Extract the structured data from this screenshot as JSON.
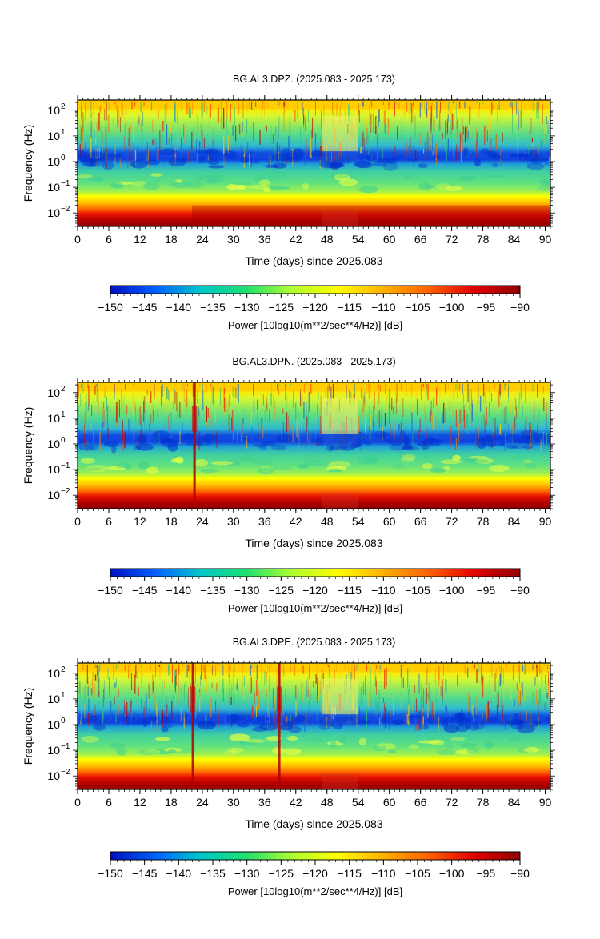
{
  "chart_data": [
    {
      "type": "heatmap",
      "title": "BG.AL3.DPZ. (2025.083 - 2025.173)",
      "xlabel": "Time (days) since 2025.083",
      "ylabel": "Frequency (Hz)",
      "xlim": [
        0,
        91
      ],
      "x_ticks": [
        0,
        6,
        12,
        18,
        24,
        30,
        36,
        42,
        48,
        54,
        60,
        66,
        72,
        78,
        84,
        90
      ],
      "y_scale": "log",
      "ylim": [
        0.003,
        250
      ],
      "y_ticks": [
        {
          "value": 0.01,
          "base": "10",
          "exp": "−2"
        },
        {
          "value": 0.1,
          "base": "10",
          "exp": "−1"
        },
        {
          "value": 1,
          "base": "10",
          "exp": "0"
        },
        {
          "value": 10,
          "base": "10",
          "exp": "1"
        },
        {
          "value": 100,
          "base": "10",
          "exp": "2"
        }
      ],
      "features": [
        {
          "kind": "broadband_high",
          "day": 22
        },
        {
          "kind": "quiet_gap",
          "start_day": 47,
          "end_day": 54
        }
      ],
      "colorbar": {
        "label": "Power [10log10(m**2/sec**4/Hz)] [dB]",
        "range": [
          -150,
          -90
        ],
        "ticks": [
          "−150",
          "−145",
          "−140",
          "−135",
          "−130",
          "−125",
          "−120",
          "−115",
          "−110",
          "−105",
          "−100",
          "−95",
          "−90"
        ]
      }
    },
    {
      "type": "heatmap",
      "title": "BG.AL3.DPN. (2025.083 - 2025.173)",
      "xlabel": "Time (days) since 2025.083",
      "ylabel": "Frequency (Hz)",
      "xlim": [
        0,
        91
      ],
      "x_ticks": [
        0,
        6,
        12,
        18,
        24,
        30,
        36,
        42,
        48,
        54,
        60,
        66,
        72,
        78,
        84,
        90
      ],
      "y_scale": "log",
      "ylim": [
        0.003,
        250
      ],
      "y_ticks": [
        {
          "value": 0.01,
          "base": "10",
          "exp": "−2"
        },
        {
          "value": 0.1,
          "base": "10",
          "exp": "−1"
        },
        {
          "value": 1,
          "base": "10",
          "exp": "0"
        },
        {
          "value": 10,
          "base": "10",
          "exp": "1"
        },
        {
          "value": 100,
          "base": "10",
          "exp": "2"
        }
      ],
      "features": [
        {
          "kind": "spike",
          "day": 22.5
        },
        {
          "kind": "quiet_gap",
          "start_day": 47,
          "end_day": 54
        }
      ],
      "colorbar": {
        "label": "Power [10log10(m**2/sec**4/Hz)] [dB]",
        "range": [
          -150,
          -90
        ],
        "ticks": [
          "−150",
          "−145",
          "−140",
          "−135",
          "−130",
          "−125",
          "−120",
          "−115",
          "−110",
          "−105",
          "−100",
          "−95",
          "−90"
        ]
      }
    },
    {
      "type": "heatmap",
      "title": "BG.AL3.DPE. (2025.083 - 2025.173)",
      "xlabel": "Time (days) since 2025.083",
      "ylabel": "Frequency (Hz)",
      "xlim": [
        0,
        91
      ],
      "x_ticks": [
        0,
        6,
        12,
        18,
        24,
        30,
        36,
        42,
        48,
        54,
        60,
        66,
        72,
        78,
        84,
        90
      ],
      "y_scale": "log",
      "ylim": [
        0.003,
        250
      ],
      "y_ticks": [
        {
          "value": 0.01,
          "base": "10",
          "exp": "−2"
        },
        {
          "value": 0.1,
          "base": "10",
          "exp": "−1"
        },
        {
          "value": 1,
          "base": "10",
          "exp": "0"
        },
        {
          "value": 10,
          "base": "10",
          "exp": "1"
        },
        {
          "value": 100,
          "base": "10",
          "exp": "2"
        }
      ],
      "features": [
        {
          "kind": "spike",
          "day": 22.2
        },
        {
          "kind": "spike",
          "day": 38.8
        },
        {
          "kind": "quiet_gap",
          "start_day": 47,
          "end_day": 54
        }
      ],
      "colorbar": {
        "label": "Power [10log10(m**2/sec**4/Hz)] [dB]",
        "range": [
          -150,
          -90
        ],
        "ticks": [
          "−150",
          "−145",
          "−140",
          "−135",
          "−130",
          "−125",
          "−120",
          "−115",
          "−110",
          "−105",
          "−100",
          "−95",
          "−90"
        ]
      }
    }
  ],
  "colors": {
    "palette": [
      "#0010c0",
      "#0060ff",
      "#00c8c8",
      "#20e070",
      "#b0ff30",
      "#ffff00",
      "#ffb000",
      "#ff6000",
      "#e00000",
      "#900000"
    ]
  }
}
